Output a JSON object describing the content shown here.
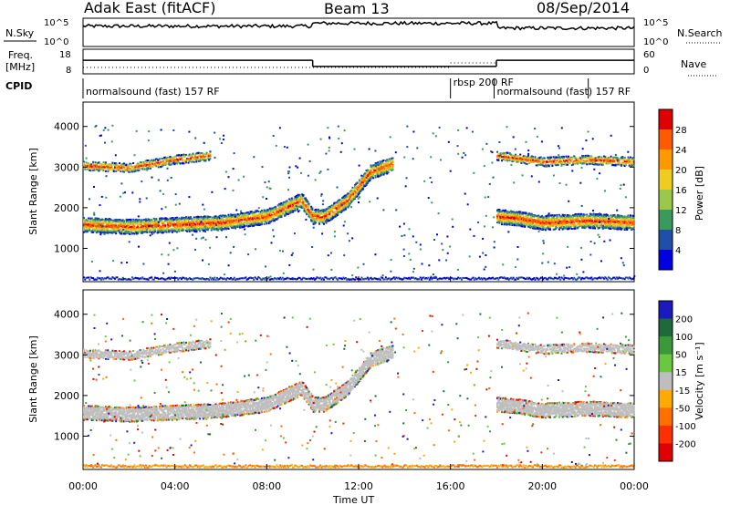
{
  "header": {
    "radar": "Adak East (fitACF)",
    "beam": "Beam 13",
    "date": "08/Sep/2014"
  },
  "top_panels": {
    "nsky_label": "N.Sky",
    "nsearch_label": "N.Search",
    "freq_label_1": "Freq.",
    "freq_label_2": "[MHz]",
    "nave_label": "Nave",
    "cpid_label": "CPID",
    "nsky_ticks": [
      "10^5",
      "10^0"
    ],
    "nsearch_ticks": [
      "10^5",
      "10^0"
    ],
    "freq_ticks": [
      "18",
      "8"
    ],
    "nave_ticks": [
      "60",
      "0"
    ],
    "cpid_segments": [
      {
        "text": "normalsound (fast) 157 RF",
        "start": 0,
        "end": 16.0
      },
      {
        "text": "rbsp 200 RF",
        "start": 16.0,
        "end": 17.9
      },
      {
        "text": "normalsound (fast) 157 RF",
        "start": 17.9,
        "end": 22.0
      }
    ]
  },
  "power_panel": {
    "ylabel": "Slant Range [km]",
    "cbar_label": "Power [dB]",
    "cbar_ticks": [
      "28",
      "24",
      "20",
      "16",
      "12",
      "8",
      "4"
    ],
    "cbar_colors": [
      "#e00000",
      "#ff5a00",
      "#ff9900",
      "#f0cc20",
      "#9ac84a",
      "#3a9a5c",
      "#1f4fa8",
      "#0000e0"
    ]
  },
  "velocity_panel": {
    "ylabel": "Slant Range [km]",
    "cbar_label": "Velocity [m s⁻¹]",
    "cbar_ticks": [
      "200",
      "100",
      "50",
      "15",
      "-15",
      "-50",
      "-100",
      "-200"
    ],
    "cbar_colors": [
      "#1a1ac0",
      "#1f6a3a",
      "#3a9a3a",
      "#6ac840",
      "#bebebe",
      "#ffaa00",
      "#ff7000",
      "#ff3000",
      "#e00000"
    ]
  },
  "x_axis": {
    "label": "Time UT",
    "ticks": [
      "00:00",
      "04:00",
      "08:00",
      "12:00",
      "16:00",
      "20:00",
      "00:00"
    ]
  },
  "y_axis": {
    "ticks": [
      "1000",
      "2000",
      "3000",
      "4000"
    ]
  },
  "chart_data": {
    "type": "heatmap",
    "title": "Adak East (fitACF)",
    "subtitle": "Beam 13",
    "date": "08/Sep/2014",
    "x_unit": "hours UT",
    "xlim": [
      0,
      24
    ],
    "ylim": [
      180,
      4600
    ],
    "xlabel": "Time UT",
    "ylabel": "Slant Range [km]",
    "series": [
      {
        "name": "power_main_band",
        "x": [
          0,
          2,
          4,
          6,
          8,
          9.5,
          10,
          10.5,
          11.5,
          12.5,
          13.5
        ],
        "y": [
          1600,
          1550,
          1600,
          1650,
          1800,
          2200,
          1800,
          1800,
          2200,
          2900,
          3100
        ]
      },
      {
        "name": "power_upper_band",
        "x": [
          0,
          2,
          4,
          5.5
        ],
        "y": [
          3050,
          3000,
          3200,
          3300
        ]
      },
      {
        "name": "power_late_band",
        "x": [
          18,
          19,
          20,
          22,
          24
        ],
        "y": [
          1800,
          1750,
          1650,
          1700,
          1650
        ]
      },
      {
        "name": "power_late_upper",
        "x": [
          18,
          20,
          22,
          24
        ],
        "y": [
          3300,
          3150,
          3200,
          3150
        ]
      }
    ],
    "nsky_range": [
      1,
      100000
    ],
    "freq_mhz": [
      {
        "start": 0,
        "end": 10,
        "value": 13.5
      },
      {
        "start": 10,
        "end": 18,
        "value": 11.0
      },
      {
        "start": 18,
        "end": 24,
        "value": 13.5
      }
    ],
    "power_db_range": [
      0,
      30
    ],
    "velocity_range": [
      -200,
      200
    ]
  }
}
